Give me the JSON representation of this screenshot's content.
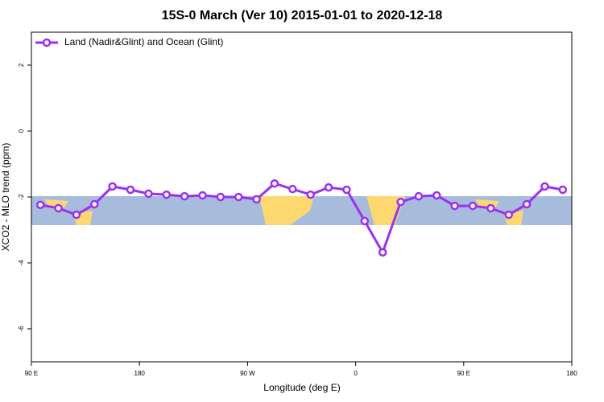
{
  "chart_data": {
    "type": "line",
    "title": "15S-0 March (Ver 10)   2015-01-01 to 2020-12-18",
    "x_label": "Longitude (deg E)",
    "y_label": "XCO2 - MLO trend (ppm)",
    "x": [
      97.5,
      112.5,
      127.5,
      142.5,
      157.5,
      172.5,
      187.5,
      202.5,
      217.5,
      232.5,
      247.5,
      262.5,
      277.5,
      292.5,
      307.5,
      322.5,
      337.5,
      352.5,
      367.5,
      382.5,
      397.5,
      412.5,
      427.5,
      442.5,
      457.5,
      472.5,
      487.5,
      502.5,
      517.5,
      532.5
    ],
    "series": [
      {
        "name": "Land (Nadir&Glint) and Ocean (Glint)",
        "color": "#9b30f0",
        "values": [
          -2.24,
          -2.34,
          -2.54,
          -2.22,
          -1.68,
          -1.78,
          -1.9,
          -1.93,
          -1.98,
          -1.95,
          -2.0,
          -2.0,
          -2.07,
          -1.59,
          -1.76,
          -1.93,
          -1.71,
          -1.78,
          -2.73,
          -3.68,
          -2.15,
          -1.98,
          -1.95,
          -2.27,
          -2.27,
          -2.34,
          -2.54,
          -2.22,
          -1.68,
          -1.78
        ]
      }
    ],
    "xlim": [
      90,
      540
    ],
    "xticks": [
      {
        "value": 90,
        "label": "90 E"
      },
      180,
      {
        "value": 270,
        "label": "90 W"
      },
      {
        "value": 360,
        "label": "0"
      },
      {
        "value": 450,
        "label": "90 E"
      },
      {
        "value": 540,
        "label": "180"
      }
    ],
    "ylim": [
      -7,
      3
    ],
    "yticks": [
      2,
      0,
      -2,
      -4,
      -6
    ],
    "legend": "top-left",
    "grid": false
  }
}
